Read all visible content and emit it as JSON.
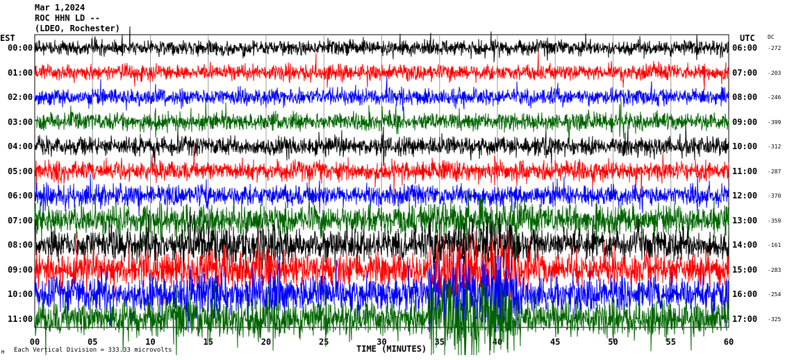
{
  "header": {
    "date": "Mar 1,2024",
    "station": "ROC HHN LD --",
    "network": "(LDEO, Rochester)"
  },
  "left_axis_title": "EST",
  "right_axis_title": "UTC",
  "dc_title": "DC",
  "x_axis_title": "TIME (MINUTES)",
  "footer": {
    "scale_text": "Each Vertical Division =  333.33 microvolts",
    "mark": "M"
  },
  "chart_data": {
    "type": "line",
    "kind": "helicorder seismogram",
    "xlim": [
      0,
      60
    ],
    "x_ticks": [
      "00",
      "05",
      "10",
      "15",
      "20",
      "25",
      "30",
      "35",
      "40",
      "45",
      "50",
      "55",
      "60"
    ],
    "grid": "vertical every 5 minutes",
    "colors": [
      "#000000",
      "#ff0000",
      "#0000ff",
      "#006400"
    ],
    "rows": [
      {
        "est": "00:00",
        "utc": "06:00",
        "dc": "-272"
      },
      {
        "est": "01:00",
        "utc": "07:00",
        "dc": "-203"
      },
      {
        "est": "02:00",
        "utc": "08:00",
        "dc": "-246"
      },
      {
        "est": "03:00",
        "utc": "09:00",
        "dc": "-399"
      },
      {
        "est": "04:00",
        "utc": "10:00",
        "dc": "-312"
      },
      {
        "est": "05:00",
        "utc": "11:00",
        "dc": "-287"
      },
      {
        "est": "06:00",
        "utc": "12:00",
        "dc": "-370"
      },
      {
        "est": "07:00",
        "utc": "13:00",
        "dc": "-359"
      },
      {
        "est": "08:00",
        "utc": "14:00",
        "dc": "-161"
      },
      {
        "est": "09:00",
        "utc": "15:00",
        "dc": "-283"
      },
      {
        "est": "10:00",
        "utc": "16:00",
        "dc": "-254"
      },
      {
        "est": "11:00",
        "utc": "17:00",
        "dc": "-325"
      }
    ]
  }
}
